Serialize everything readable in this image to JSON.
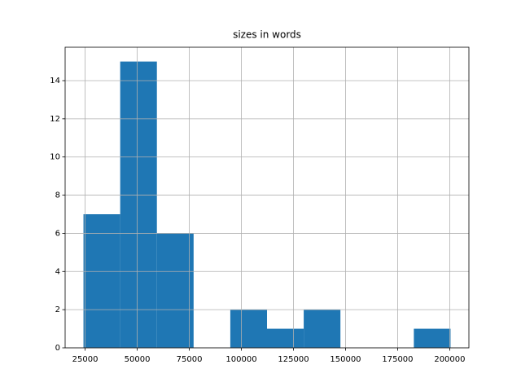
{
  "chart_data": {
    "type": "histogram",
    "title": "sizes in words",
    "bins": [
      24200,
      41820,
      59440,
      77060,
      94680,
      112300,
      129920,
      147540,
      165160,
      182780,
      200400
    ],
    "values": [
      7,
      15,
      6,
      0,
      2,
      1,
      2,
      0,
      0,
      1
    ],
    "color": "#1f77b4",
    "xlim": [
      15390,
      209210
    ],
    "xticks": [
      25000,
      50000,
      75000,
      100000,
      125000,
      150000,
      175000,
      200000
    ],
    "ylim": [
      0,
      15.75
    ],
    "yticks": [
      0,
      2,
      4,
      6,
      8,
      10,
      12,
      14
    ],
    "grid": true
  }
}
